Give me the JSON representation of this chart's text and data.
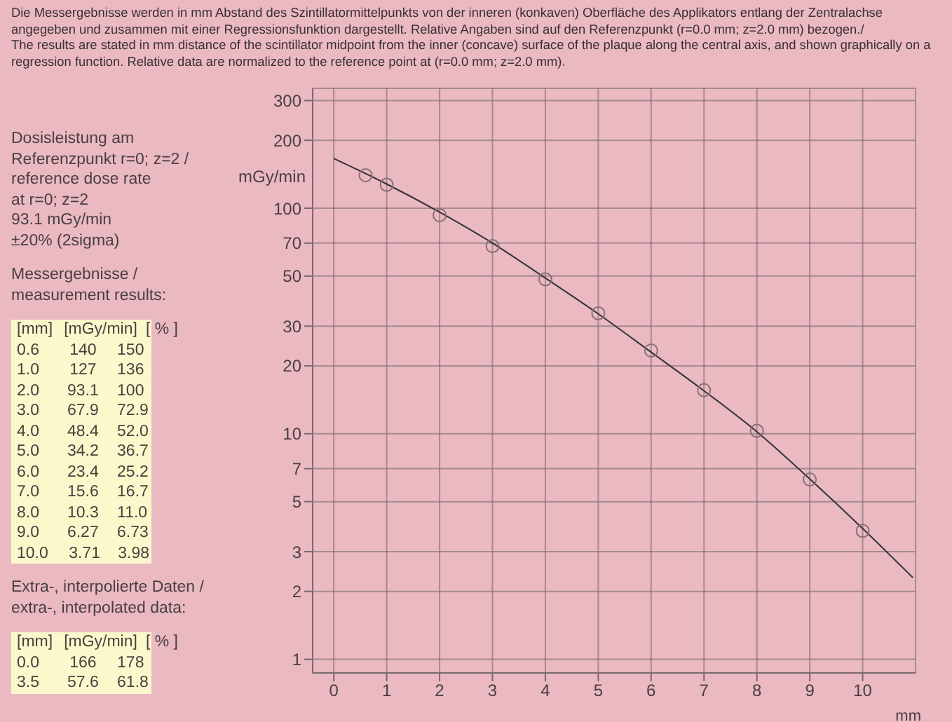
{
  "chart_data": {
    "type": "scatter",
    "title": "Die Messergebnisse werden in mm Abstand des Szintillatormittelpunkts von der inneren (konkaven) Oberfläche des Applikators entlang der Zentralachse angegeben und zusammen mit einer Regressionsfunktion dargestellt. Relative Angaben sind auf den Referenzpunkt (r=0.0 mm; z=2.0 mm) bezogen./",
    "subtitle": "The results are stated in mm distance of the scintillator midpoint from the inner (concave) surface of the plaque along the central axis, and shown graphically on a regression function. Relative data are normalized to the reference point at (r=0.0 mm; z=2.0 mm).",
    "xlabel": "mm",
    "ylabel": "mGy/min",
    "log": "y",
    "grid": true,
    "marker": "circle",
    "xlim": [
      -0.4,
      11
    ],
    "xticks": [
      0,
      1,
      2,
      3,
      4,
      5,
      6,
      7,
      8,
      9,
      10
    ],
    "ylim": [
      0.87,
      340
    ],
    "yticks": [
      1,
      2,
      3,
      5,
      7,
      10,
      20,
      30,
      50,
      70,
      100,
      200,
      300
    ],
    "series": [
      {
        "color": "#8a6f72",
        "x": [
          0.6,
          1,
          2,
          3,
          4,
          5,
          6,
          7,
          8,
          9,
          10
        ],
        "values": [
          140,
          127,
          93.1,
          67.9,
          48.4,
          34.2,
          23.4,
          15.6,
          10.3,
          6.27,
          3.71
        ]
      },
      {
        "type": "line",
        "marker": "none",
        "color": "#333333",
        "x": [
          0,
          1,
          2,
          3,
          4,
          5,
          6,
          7,
          8,
          9,
          10,
          10.95
        ],
        "values": [
          166,
          128,
          96,
          70,
          49,
          34,
          23,
          15.5,
          10.2,
          6.3,
          3.8,
          2.3
        ]
      }
    ],
    "annotations": [
      "Dosisleistung am",
      "Referenzpunkt r=0; z=2 /",
      "reference dose rate",
      "at r=0; z=2",
      "93.1 mGy/min",
      "±20% (2sigma)",
      "Messergebnisse /",
      "measurement results:",
      "[mm]\t[mGy/min]\t[ % ]",
      "0.6\t140\t150",
      "1.0\t127\t136",
      "2.0\t93.1\t100",
      "3.0\t67.9\t72.9",
      "4.0\t48.4\t52.0",
      "5.0\t34.2\t36.7",
      "6.0\t23.4\t25.2",
      "7.0\t15.6\t16.7",
      "8.0\t10.3\t11.0",
      "9.0\t6.27\t6.73",
      "10.0\t3.71\t3.98",
      "Extra-, interpolierte Daten /",
      "extra-, interpolated data:",
      "[mm]\t[mGy/min]\t[ % ]",
      "0.0\t166\t178",
      "3.5\t57.6\t61.8"
    ]
  }
}
